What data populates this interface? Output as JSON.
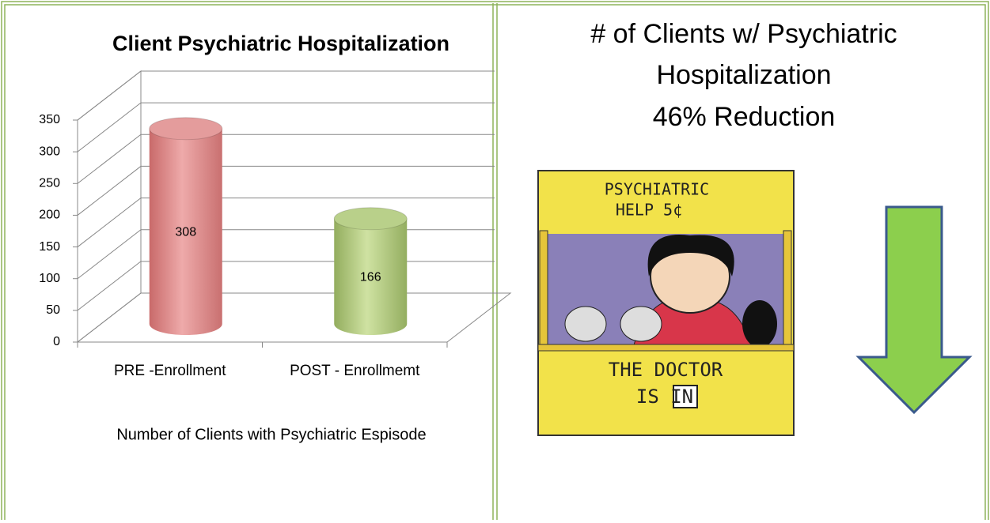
{
  "chart_data": {
    "type": "bar3d",
    "title": "Client Psychiatric Hospitalization",
    "categories": [
      "PRE -Enrollment",
      "POST - Enrollmemt"
    ],
    "values": [
      308,
      166
    ],
    "colors": [
      "#e49c9c",
      "#b9d08a"
    ],
    "ylim": [
      0,
      350
    ],
    "yticks": [
      0,
      50,
      100,
      150,
      200,
      250,
      300,
      350
    ],
    "grid": true,
    "caption": "Number of Clients with Psychiatric Espisode"
  },
  "summary": {
    "title_lines": [
      "# of Clients w/ Psychiatric",
      "Hospitalization",
      "46% Reduction"
    ]
  },
  "cartoon": {
    "sign_top": [
      "PSYCHIATRIC",
      "HELP 5¢"
    ],
    "sign_bottom": [
      "THE DOCTOR",
      "IS IN"
    ]
  }
}
